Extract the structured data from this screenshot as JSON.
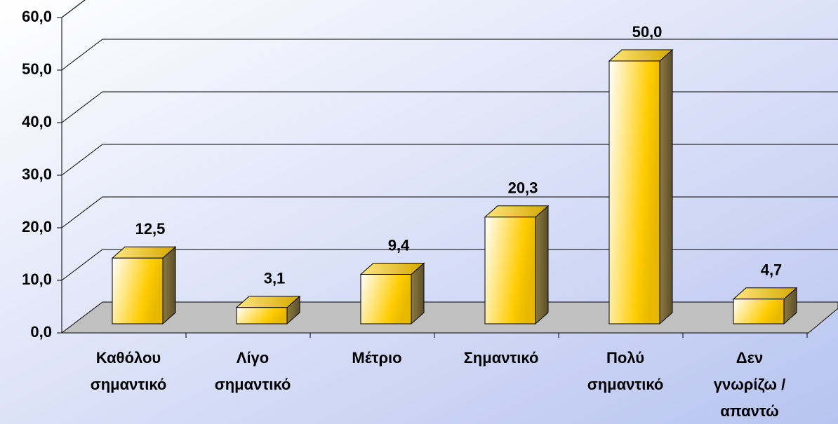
{
  "chart_data": {
    "type": "bar3d",
    "categories": [
      [
        "Καθόλου",
        "σημαντικό"
      ],
      [
        "Λίγο",
        "σημαντικό"
      ],
      [
        "Μέτριο"
      ],
      [
        "Σημαντικό"
      ],
      [
        "Πολύ",
        "σημαντικό"
      ],
      [
        "Δεν",
        "γνωρίζω /",
        "απαντώ"
      ]
    ],
    "values": [
      12.5,
      3.1,
      9.4,
      20.3,
      50.0,
      4.7
    ],
    "value_labels": [
      "12,5",
      "3,1",
      "9,4",
      "20,3",
      "50,0",
      "4,7"
    ],
    "color": "#ffcc00",
    "ylim": [
      0,
      60
    ],
    "yticks": [
      {
        "value": 0,
        "label": "0,0"
      },
      {
        "value": 10,
        "label": "10,0"
      },
      {
        "value": 20,
        "label": "20,0"
      },
      {
        "value": 30,
        "label": "30,0"
      },
      {
        "value": 40,
        "label": "40,0"
      },
      {
        "value": 50,
        "label": "50,0"
      },
      {
        "value": 60,
        "label": "60,0"
      }
    ],
    "grid": true
  }
}
